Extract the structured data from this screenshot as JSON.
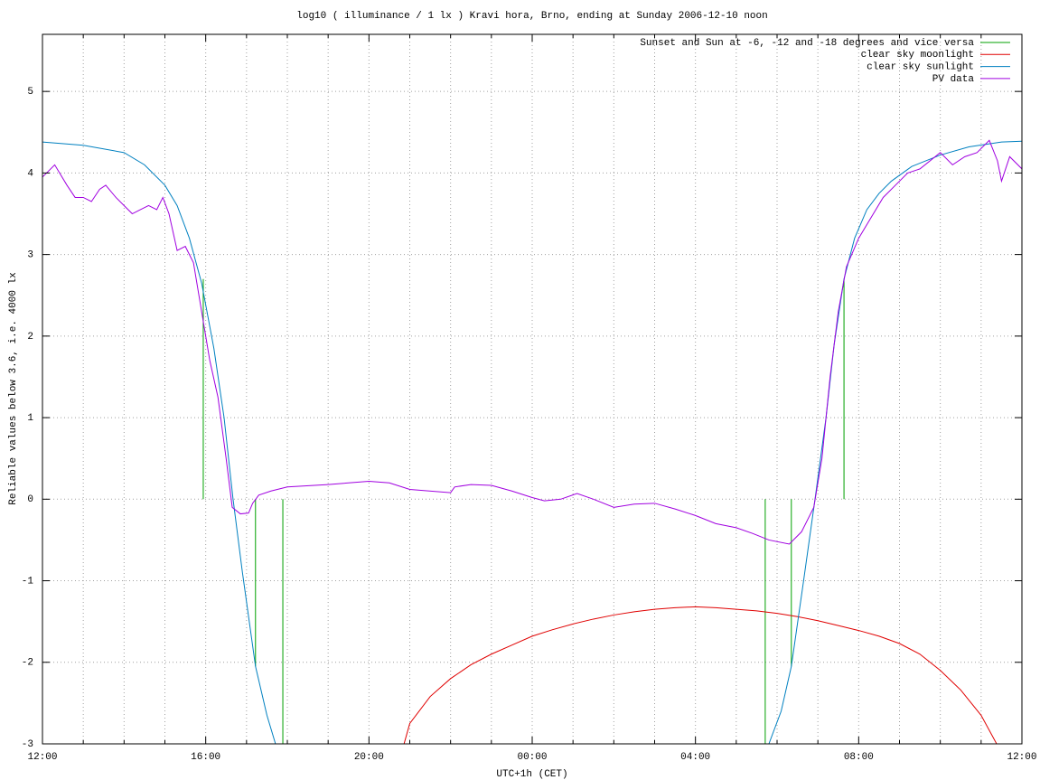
{
  "chart_data": {
    "type": "line",
    "title": "log10 ( illuminance / 1 lx ) Kravi hora, Brno, ending at Sunday 2006-12-10 noon",
    "x_label": "UTC+1h (CET)",
    "y_label": "Reliable values below 3.6, i.e. 4000 lx",
    "xlim": [
      0,
      24
    ],
    "ylim": [
      -3,
      5.7
    ],
    "xticks": [
      {
        "value": 0,
        "label": "12:00"
      },
      {
        "value": 4,
        "label": "16:00"
      },
      {
        "value": 8,
        "label": "20:00"
      },
      {
        "value": 12,
        "label": "00:00"
      },
      {
        "value": 16,
        "label": "04:00"
      },
      {
        "value": 20,
        "label": "08:00"
      },
      {
        "value": 24,
        "label": "12:00"
      }
    ],
    "xminorticks": [
      1,
      2,
      3,
      5,
      6,
      7,
      9,
      10,
      11,
      13,
      14,
      15,
      17,
      18,
      19,
      21,
      22,
      23
    ],
    "yticks": [
      -3,
      -2,
      -1,
      0,
      1,
      2,
      3,
      4,
      5
    ],
    "grid": true,
    "legend": "top-right",
    "series": [
      {
        "name": "Sunset and Sun at -6, -12 and -18 degrees and vice versa",
        "color": "#00a000",
        "style": "impulses",
        "x": [
          3.94,
          5.22,
          5.89,
          17.71,
          18.35,
          19.64
        ],
        "values": [
          2.7,
          -2.05,
          -3,
          -3,
          -2.05,
          2.7
        ]
      },
      {
        "name": "clear sky moonlight",
        "color": "#e00000",
        "style": "lines",
        "x": [
          8.86,
          9,
          9.5,
          10,
          10.5,
          11,
          11.5,
          12,
          12.5,
          13,
          13.5,
          14,
          14.5,
          15,
          15.5,
          16,
          16.5,
          17,
          17.5,
          18,
          18.5,
          19,
          19.5,
          20,
          20.5,
          21,
          21.5,
          22,
          22.5,
          23,
          23.38
        ],
        "values": [
          -3,
          -2.75,
          -2.42,
          -2.2,
          -2.03,
          -1.9,
          -1.79,
          -1.68,
          -1.6,
          -1.53,
          -1.47,
          -1.42,
          -1.38,
          -1.35,
          -1.33,
          -1.32,
          -1.33,
          -1.35,
          -1.37,
          -1.4,
          -1.44,
          -1.49,
          -1.55,
          -1.61,
          -1.68,
          -1.77,
          -1.9,
          -2.1,
          -2.34,
          -2.65,
          -3
        ]
      },
      {
        "name": "clear sky sunlight",
        "color": "#0080c0",
        "style": "lines",
        "x": [
          0,
          1,
          2,
          2.5,
          3,
          3.3,
          3.6,
          3.9,
          4.2,
          4.45,
          4.67,
          4.9,
          5.22,
          5.5,
          5.71,
          17.8,
          18.1,
          18.35,
          18.65,
          18.93,
          19.2,
          19.4,
          19.64,
          19.9,
          20.2,
          20.5,
          20.8,
          21.3,
          22,
          22.7,
          23.5,
          24
        ],
        "values": [
          4.38,
          4.34,
          4.25,
          4.1,
          3.85,
          3.6,
          3.2,
          2.65,
          1.85,
          1.0,
          0.0,
          -0.9,
          -2.05,
          -2.65,
          -3,
          -3,
          -2.6,
          -2.05,
          -1.0,
          0.0,
          1.0,
          1.9,
          2.7,
          3.2,
          3.55,
          3.75,
          3.9,
          4.08,
          4.22,
          4.32,
          4.38,
          4.39
        ]
      },
      {
        "name": "PV data",
        "color": "#a000e0",
        "style": "lines",
        "x": [
          0,
          0.3,
          0.6,
          0.8,
          1.0,
          1.2,
          1.4,
          1.55,
          1.8,
          2.0,
          2.2,
          2.4,
          2.6,
          2.8,
          2.95,
          3.1,
          3.3,
          3.5,
          3.7,
          3.9,
          4.1,
          4.3,
          4.5,
          4.65,
          4.85,
          5.05,
          5.15,
          5.3,
          5.6,
          6,
          7,
          8,
          8.5,
          9,
          10,
          10.1,
          10.5,
          11,
          11.5,
          12,
          12.3,
          12.7,
          13.1,
          13.5,
          14,
          14.5,
          15,
          15.5,
          16,
          16.5,
          17,
          17.4,
          17.8,
          18.3,
          18.6,
          18.9,
          19.1,
          19.3,
          19.5,
          19.7,
          20,
          20.3,
          20.6,
          20.9,
          21.2,
          21.5,
          22,
          22.3,
          22.6,
          22.9,
          23.2,
          23.4,
          23.5,
          23.7,
          24
        ],
        "values": [
          3.95,
          4.1,
          3.85,
          3.7,
          3.7,
          3.65,
          3.8,
          3.85,
          3.7,
          3.6,
          3.5,
          3.55,
          3.6,
          3.55,
          3.7,
          3.5,
          3.05,
          3.1,
          2.9,
          2.3,
          1.7,
          1.25,
          0.5,
          -0.1,
          -0.18,
          -0.17,
          -0.05,
          0.05,
          0.1,
          0.15,
          0.18,
          0.22,
          0.2,
          0.12,
          0.08,
          0.15,
          0.18,
          0.17,
          0.1,
          0.02,
          -0.02,
          0.0,
          0.07,
          0.0,
          -0.1,
          -0.06,
          -0.05,
          -0.12,
          -0.2,
          -0.3,
          -0.35,
          -0.42,
          -0.5,
          -0.55,
          -0.4,
          -0.1,
          0.5,
          1.5,
          2.3,
          2.85,
          3.2,
          3.45,
          3.7,
          3.85,
          4.0,
          4.05,
          4.25,
          4.1,
          4.2,
          4.25,
          4.4,
          4.15,
          3.9,
          4.2,
          4.05
        ]
      }
    ]
  }
}
